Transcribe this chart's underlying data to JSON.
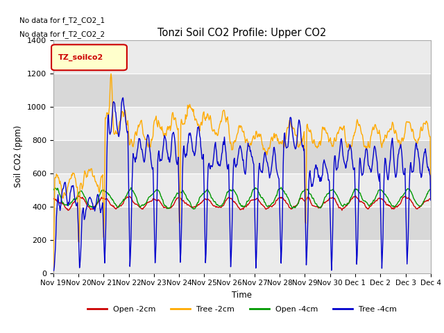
{
  "title": "Tonzi Soil CO2 Profile: Upper CO2",
  "ylabel": "Soil CO2 (ppm)",
  "xlabel": "Time",
  "no_data_text_1": "No data for f_T2_CO2_1",
  "no_data_text_2": "No data for f_T2_CO2_2",
  "legend_label": "TZ_soilco2",
  "legend_entries": [
    {
      "label": "Open -2cm",
      "color": "#cc0000"
    },
    {
      "label": "Tree -2cm",
      "color": "#ffaa00"
    },
    {
      "label": "Open -4cm",
      "color": "#009900"
    },
    {
      "label": "Tree -4cm",
      "color": "#0000cc"
    }
  ],
  "ylim": [
    0,
    1400
  ],
  "background_color": "#ffffff",
  "plot_bg_light": "#ebebeb",
  "plot_bg_dark": "#d8d8d8",
  "grid_color": "#ffffff",
  "tick_dates": [
    "Nov 19",
    "Nov 20",
    "Nov 21",
    "Nov 22",
    "Nov 23",
    "Nov 24",
    "Nov 25",
    "Nov 26",
    "Nov 27",
    "Nov 28",
    "Nov 29",
    "Nov 30",
    "Dec 1",
    "Dec 2",
    "Dec 3",
    "Dec 4"
  ],
  "figsize": [
    6.4,
    4.8
  ],
  "dpi": 100
}
